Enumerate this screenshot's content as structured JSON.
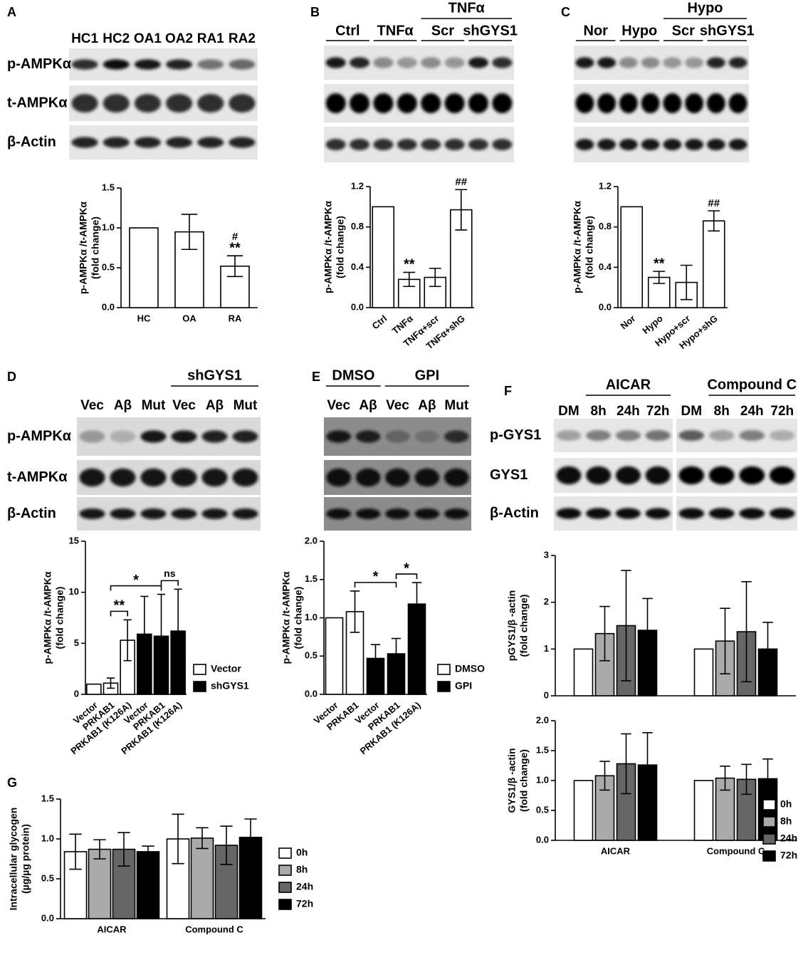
{
  "panel_letters": [
    "A",
    "B",
    "C",
    "D",
    "E",
    "F",
    "G"
  ],
  "blots": [
    {
      "lanes": [
        "HC1",
        "HC2",
        "OA1",
        "OA2",
        "RA1",
        "RA2"
      ],
      "rows": [
        "p-AMPKα",
        "t-AMPKα",
        "β-Actin"
      ]
    },
    {
      "groups": [
        "Ctrl",
        "TNFα",
        "Scr",
        "shGYS1"
      ],
      "over": [
        "TNFα"
      ]
    },
    {
      "groups": [
        "Nor",
        "Hypo",
        "Scr",
        "shGYS1"
      ],
      "over": [
        "Hypo"
      ]
    },
    {
      "over": [
        "shGYS1"
      ],
      "lanes": [
        "Vec",
        "Aβ",
        "Mut",
        "Vec",
        "Aβ",
        "Mut"
      ],
      "rows": [
        "p-AMPKα",
        "t-AMPKα",
        "β-Actin"
      ]
    },
    {
      "over": [
        "DMSO",
        "GPI"
      ],
      "lanes": [
        "Vec",
        "Aβ",
        "Vec",
        "Aβ",
        "Mut"
      ]
    },
    {
      "over": [
        "AICAR",
        "Compound C"
      ],
      "lanes": [
        "DM",
        "8h",
        "24h",
        "72h",
        "DM",
        "8h",
        "24h",
        "72h"
      ],
      "rows": [
        "p-GYS1",
        "GYS1",
        "β-Actin"
      ]
    }
  ],
  "chart_data": [
    {
      "type": "bar",
      "ylabel": [
        "p-AMPKα /t-AMPKα",
        "(fold change)"
      ],
      "categories": [
        "HC",
        "OA",
        "RA"
      ],
      "series": [
        {
          "color": "#ffffff",
          "values": [
            1.0,
            0.95,
            0.52
          ],
          "errors": [
            null,
            0.22,
            0.13
          ]
        }
      ],
      "ylim": [
        0,
        1.5
      ],
      "yticks": [
        {
          "value": 0,
          "label": "0.0"
        },
        0.5,
        {
          "value": 1,
          "label": "1.0"
        },
        1.5
      ],
      "annotations": [
        {
          "text": "**",
          "category": 2
        },
        {
          "text": "#",
          "category": 2
        }
      ]
    },
    {
      "type": "bar",
      "ylabel": [
        "p-AMPKα /t-AMPKα",
        "(fold change)"
      ],
      "categories": [
        "Ctrl",
        "TNFα",
        "TNFα+scr",
        "TNFα+shG"
      ],
      "series": [
        {
          "color": "#ffffff",
          "values": [
            1.0,
            0.28,
            0.3,
            0.97
          ],
          "errors": [
            null,
            0.07,
            0.09,
            0.2
          ]
        }
      ],
      "ylim": [
        0,
        1.2
      ],
      "yticks": [
        {
          "value": 0,
          "label": "0.0"
        },
        0.4,
        0.8,
        1.2
      ],
      "annotations": [
        {
          "text": "**",
          "category": 1
        },
        {
          "text": "##",
          "category": 3
        }
      ]
    },
    {
      "type": "bar",
      "ylabel": [
        "p-AMPKα /t-AMPKα",
        "(fold change)"
      ],
      "categories": [
        "Nor",
        "Hypo",
        "Hypo+scr",
        "Hypo+shG"
      ],
      "series": [
        {
          "color": "#ffffff",
          "values": [
            1.0,
            0.3,
            0.25,
            0.86
          ],
          "errors": [
            null,
            0.06,
            0.17,
            0.1
          ]
        }
      ],
      "ylim": [
        0,
        1.2
      ],
      "yticks": [
        {
          "value": 0,
          "label": "0.0"
        },
        0.4,
        0.8,
        1.2
      ],
      "annotations": [
        {
          "text": "**",
          "category": 1
        },
        {
          "text": "##",
          "category": 3
        }
      ]
    },
    {
      "type": "bar",
      "ylabel": [
        "p-AMPKα /t-AMPKα",
        "(fold change)"
      ],
      "categories": [
        "Vector",
        "PRKAB1",
        "PRKAB1 (K126A)",
        "Vector",
        "PRKAB1",
        "PRKAB1 (K126A)"
      ],
      "series": [
        {
          "name": "Vector",
          "color": "#ffffff",
          "values": [
            1.0,
            1.1,
            5.3,
            null,
            null,
            null
          ],
          "errors": [
            null,
            0.5,
            2.0,
            null,
            null,
            null
          ]
        },
        {
          "name": "shGYS1",
          "color": "#000000",
          "values": [
            null,
            null,
            null,
            5.9,
            5.7,
            6.2
          ],
          "errors": [
            null,
            null,
            null,
            3.7,
            4.1,
            4.1
          ]
        }
      ],
      "ylim": [
        0,
        15
      ],
      "yticks": [
        0,
        5,
        10,
        15
      ],
      "brackets": [
        {
          "text": "**",
          "from": 1,
          "to": 2
        },
        {
          "text": "ns",
          "from": 4,
          "to": 5
        },
        {
          "text": "*",
          "from": 1,
          "to": 4
        }
      ]
    },
    {
      "type": "bar",
      "ylabel": [
        "p-AMPKα /t-AMPKα",
        "(fold change)"
      ],
      "categories": [
        "Vector",
        "PRKAB1",
        "Vector",
        "PRKAB1",
        "PRKAB1 (K126A)"
      ],
      "series": [
        {
          "name": "DMSO",
          "color": "#ffffff",
          "values": [
            1.0,
            1.08,
            null,
            null,
            null
          ],
          "errors": [
            null,
            0.27,
            null,
            null,
            null
          ]
        },
        {
          "name": "GPI",
          "color": "#000000",
          "values": [
            null,
            null,
            0.47,
            0.53,
            1.18
          ],
          "errors": [
            null,
            null,
            0.18,
            0.2,
            0.28
          ]
        }
      ],
      "ylim": [
        0,
        2
      ],
      "yticks": [
        {
          "value": 0,
          "label": "0.0"
        },
        0.5,
        {
          "value": 1,
          "label": "1.0"
        },
        1.5,
        {
          "value": 2,
          "label": "2.0"
        }
      ],
      "brackets": [
        {
          "text": "*",
          "from": 1,
          "to": 3
        },
        {
          "text": "*",
          "from": 3,
          "to": 4
        }
      ]
    },
    {
      "type": "bar",
      "ylabel": [
        "pGYS1/β -actin",
        "(fold change)"
      ],
      "series": [
        {
          "color": "#ffffff",
          "values": [
            1.0,
            1.0
          ],
          "errors": [
            null,
            null
          ]
        },
        {
          "color": "#aaaaaa",
          "values": [
            1.33,
            1.17
          ],
          "errors": [
            0.58,
            0.7
          ]
        },
        {
          "color": "#666666",
          "values": [
            1.5,
            1.37
          ],
          "errors": [
            1.18,
            1.07
          ]
        },
        {
          "color": "#000000",
          "values": [
            1.4,
            1.0
          ],
          "errors": [
            0.68,
            0.57
          ]
        }
      ],
      "ylim": [
        0,
        3
      ],
      "yticks": [
        0,
        1,
        2,
        3
      ]
    },
    {
      "type": "bar",
      "ylabel": [
        "GYS1/β -actin",
        "(fold change)"
      ],
      "categories": [
        "AICAR",
        "Compound C"
      ],
      "series": [
        {
          "name": "0h",
          "color": "#ffffff",
          "values": [
            1.0,
            1.0
          ],
          "errors": [
            null,
            null
          ]
        },
        {
          "name": "8h",
          "color": "#aaaaaa",
          "values": [
            1.08,
            1.04
          ],
          "errors": [
            0.24,
            0.2
          ]
        },
        {
          "name": "24h",
          "color": "#666666",
          "values": [
            1.28,
            1.02
          ],
          "errors": [
            0.5,
            0.25
          ]
        },
        {
          "name": "72h",
          "color": "#000000",
          "values": [
            1.26,
            1.03
          ],
          "errors": [
            0.54,
            0.33
          ]
        }
      ],
      "ylim": [
        0,
        2
      ],
      "yticks": [
        {
          "value": 0,
          "label": "0.0"
        },
        0.5,
        {
          "value": 1,
          "label": "1.0"
        },
        1.5,
        {
          "value": 2,
          "label": "2.0"
        }
      ]
    },
    {
      "type": "bar",
      "ylabel": [
        "Intracellular glycogen",
        "(µg/µg protein)"
      ],
      "categories": [
        "AICAR",
        "Compound C"
      ],
      "series": [
        {
          "name": "0h",
          "color": "#ffffff",
          "values": [
            0.84,
            1.0
          ],
          "errors": [
            0.22,
            0.31
          ]
        },
        {
          "name": "8h",
          "color": "#aaaaaa",
          "values": [
            0.87,
            1.01
          ],
          "errors": [
            0.12,
            0.13
          ]
        },
        {
          "name": "24h",
          "color": "#666666",
          "values": [
            0.87,
            0.92
          ],
          "errors": [
            0.21,
            0.24
          ]
        },
        {
          "name": "72h",
          "color": "#000000",
          "values": [
            0.84,
            1.02
          ],
          "errors": [
            0.07,
            0.23
          ]
        }
      ],
      "ylim": [
        0,
        1.5
      ],
      "yticks": [
        {
          "value": 0,
          "label": "0.0"
        },
        0.5,
        {
          "value": 1,
          "label": "1.0"
        },
        1.5
      ]
    }
  ]
}
